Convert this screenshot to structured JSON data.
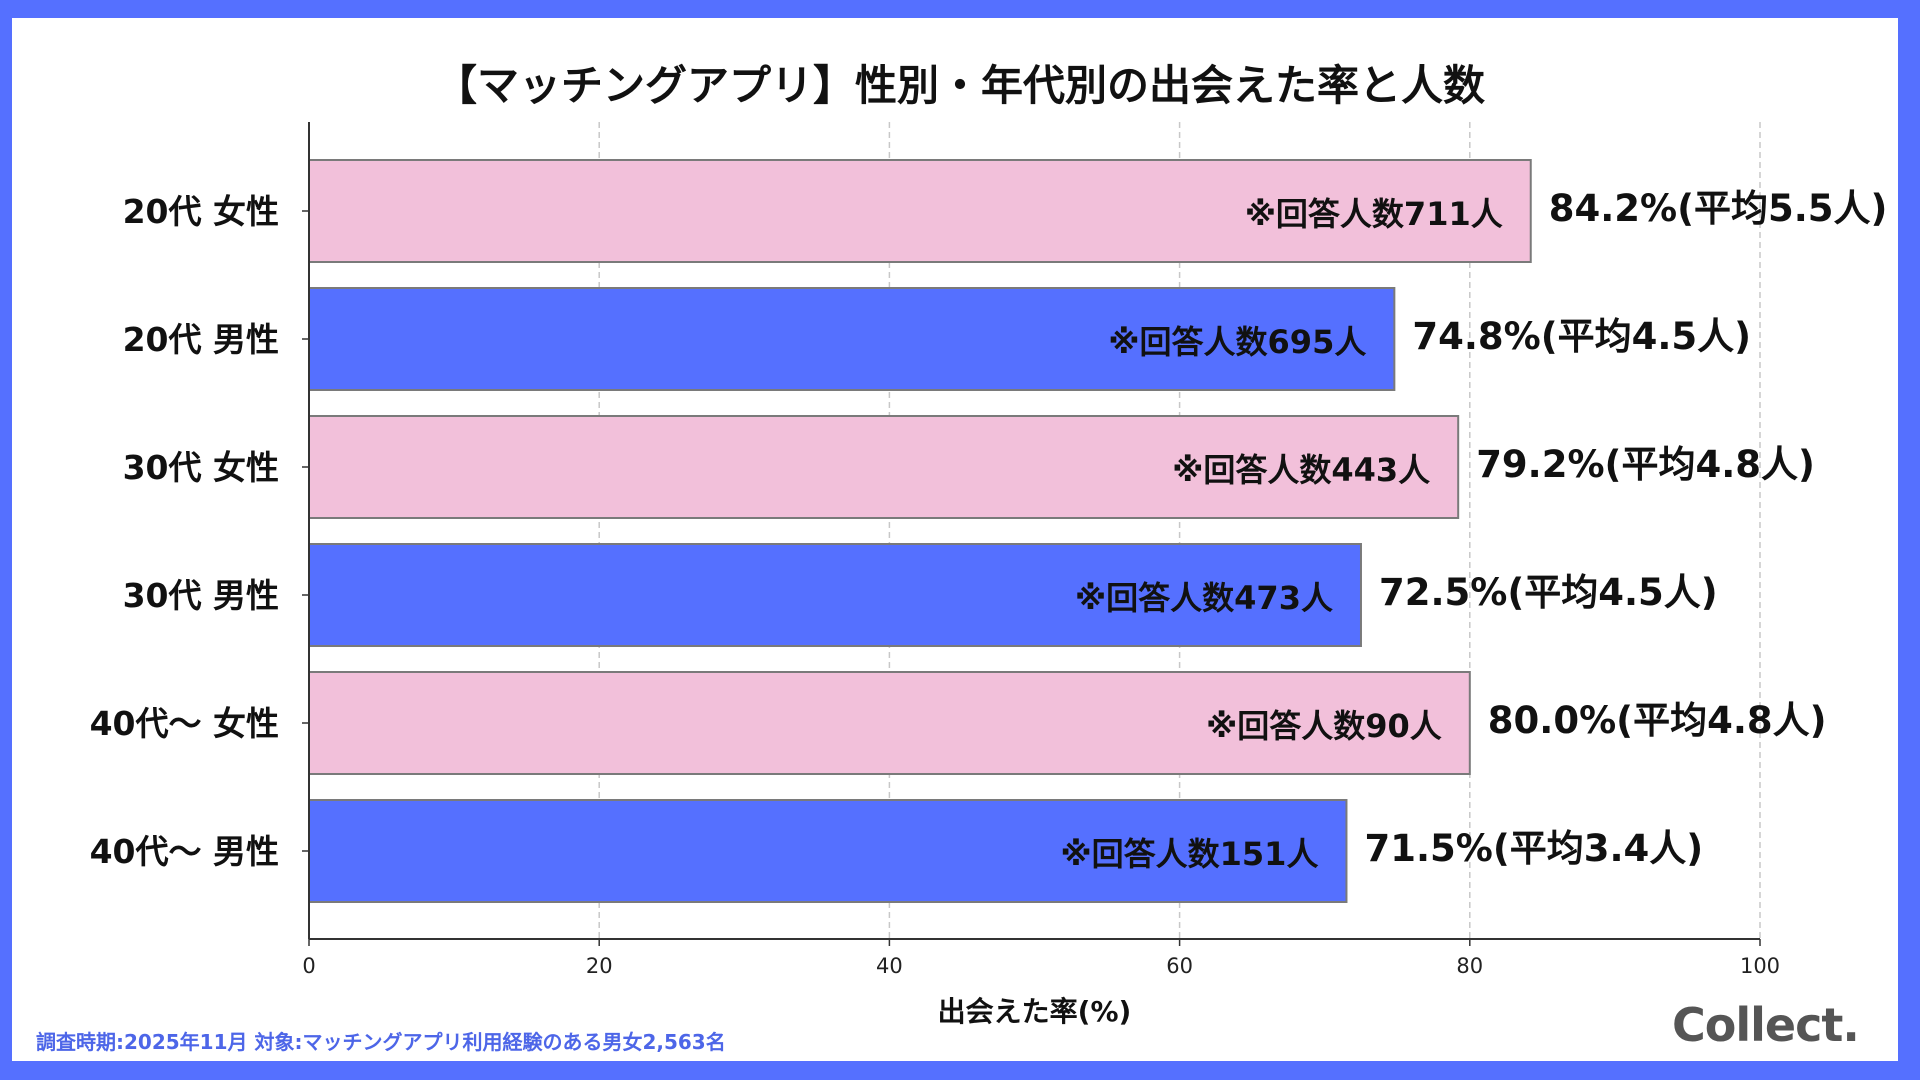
{
  "chart_data": {
    "type": "bar",
    "orientation": "horizontal",
    "title": "【マッチングアプリ】性別・年代別の出会えた率と人数",
    "xlabel": "出会えた率(%)",
    "ylabel": "",
    "xlim": [
      0,
      100
    ],
    "xticks": [
      "0",
      "20",
      "40",
      "60",
      "80",
      "100"
    ],
    "grid": "vertical dashed",
    "categories": [
      "20代 女性",
      "20代 男性",
      "30代 女性",
      "30代 男性",
      "40代〜 女性",
      "40代〜 男性"
    ],
    "values": [
      84.2,
      74.8,
      79.2,
      72.5,
      80.0,
      71.5
    ],
    "bar_labels_inside": [
      "※回答人数711人",
      "※回答人数695人",
      "※回答人数443人",
      "※回答人数473人",
      "※回答人数90人",
      "※回答人数151人"
    ],
    "bar_labels_outside": [
      "84.2%(平均5.5人)",
      "74.8%(平均4.5人)",
      "79.2%(平均4.8人)",
      "72.5%(平均4.5人)",
      "80.0%(平均4.8人)",
      "71.5%(平均3.4人)"
    ],
    "bar_colors": [
      "#f2c0da",
      "#5570ff",
      "#f2c0da",
      "#5570ff",
      "#f2c0da",
      "#5570ff"
    ]
  },
  "footnote": "調査時期:2025年11月 対象:マッチングアプリ利用経験のある男女2,563名",
  "logo": "Collect.",
  "colors": {
    "frame": "#5570ff",
    "female": "#f2c0da",
    "male": "#5570ff",
    "footnote": "#4d66e8"
  }
}
